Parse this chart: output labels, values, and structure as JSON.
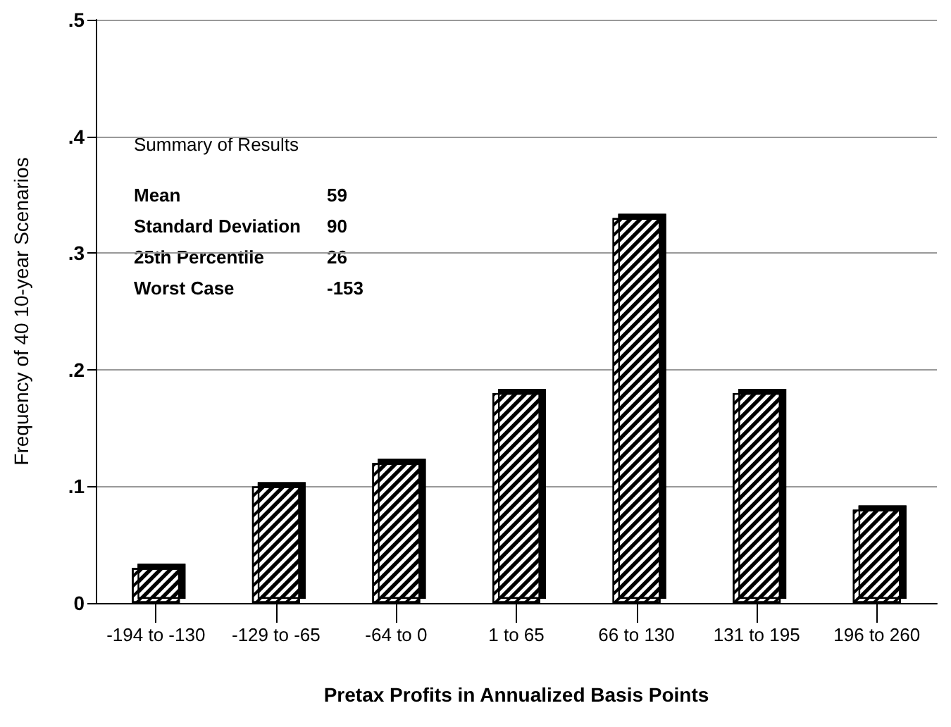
{
  "chart_data": {
    "type": "bar",
    "xlabel": "Pretax Profits in Annualized Basis Points",
    "ylabel": "Frequency of 40 10-year Scenarios",
    "categories": [
      "-194 to -130",
      "-129 to -65",
      "-64 to 0",
      "1 to 65",
      "66 to 130",
      "131 to 195",
      "196 to 260"
    ],
    "values": [
      0.03,
      0.1,
      0.12,
      0.18,
      0.33,
      0.18,
      0.08
    ],
    "color": "#ffffff",
    "ylim": [
      0,
      0.5
    ],
    "yticks": [
      {
        "value": 0,
        "label": "0"
      },
      {
        "value": 0.1,
        "label": ".1"
      },
      {
        "value": 0.2,
        "label": ".2"
      },
      {
        "value": 0.3,
        "label": ".3"
      },
      {
        "value": 0.4,
        "label": ".4"
      },
      {
        "value": 0.5,
        "label": ".5"
      }
    ],
    "grid": "y",
    "annotations": [
      "Summary of Results",
      "Mean 59",
      "Standard Deviation 90",
      "25th Percentile 26",
      "Worst Case -153"
    ]
  }
}
